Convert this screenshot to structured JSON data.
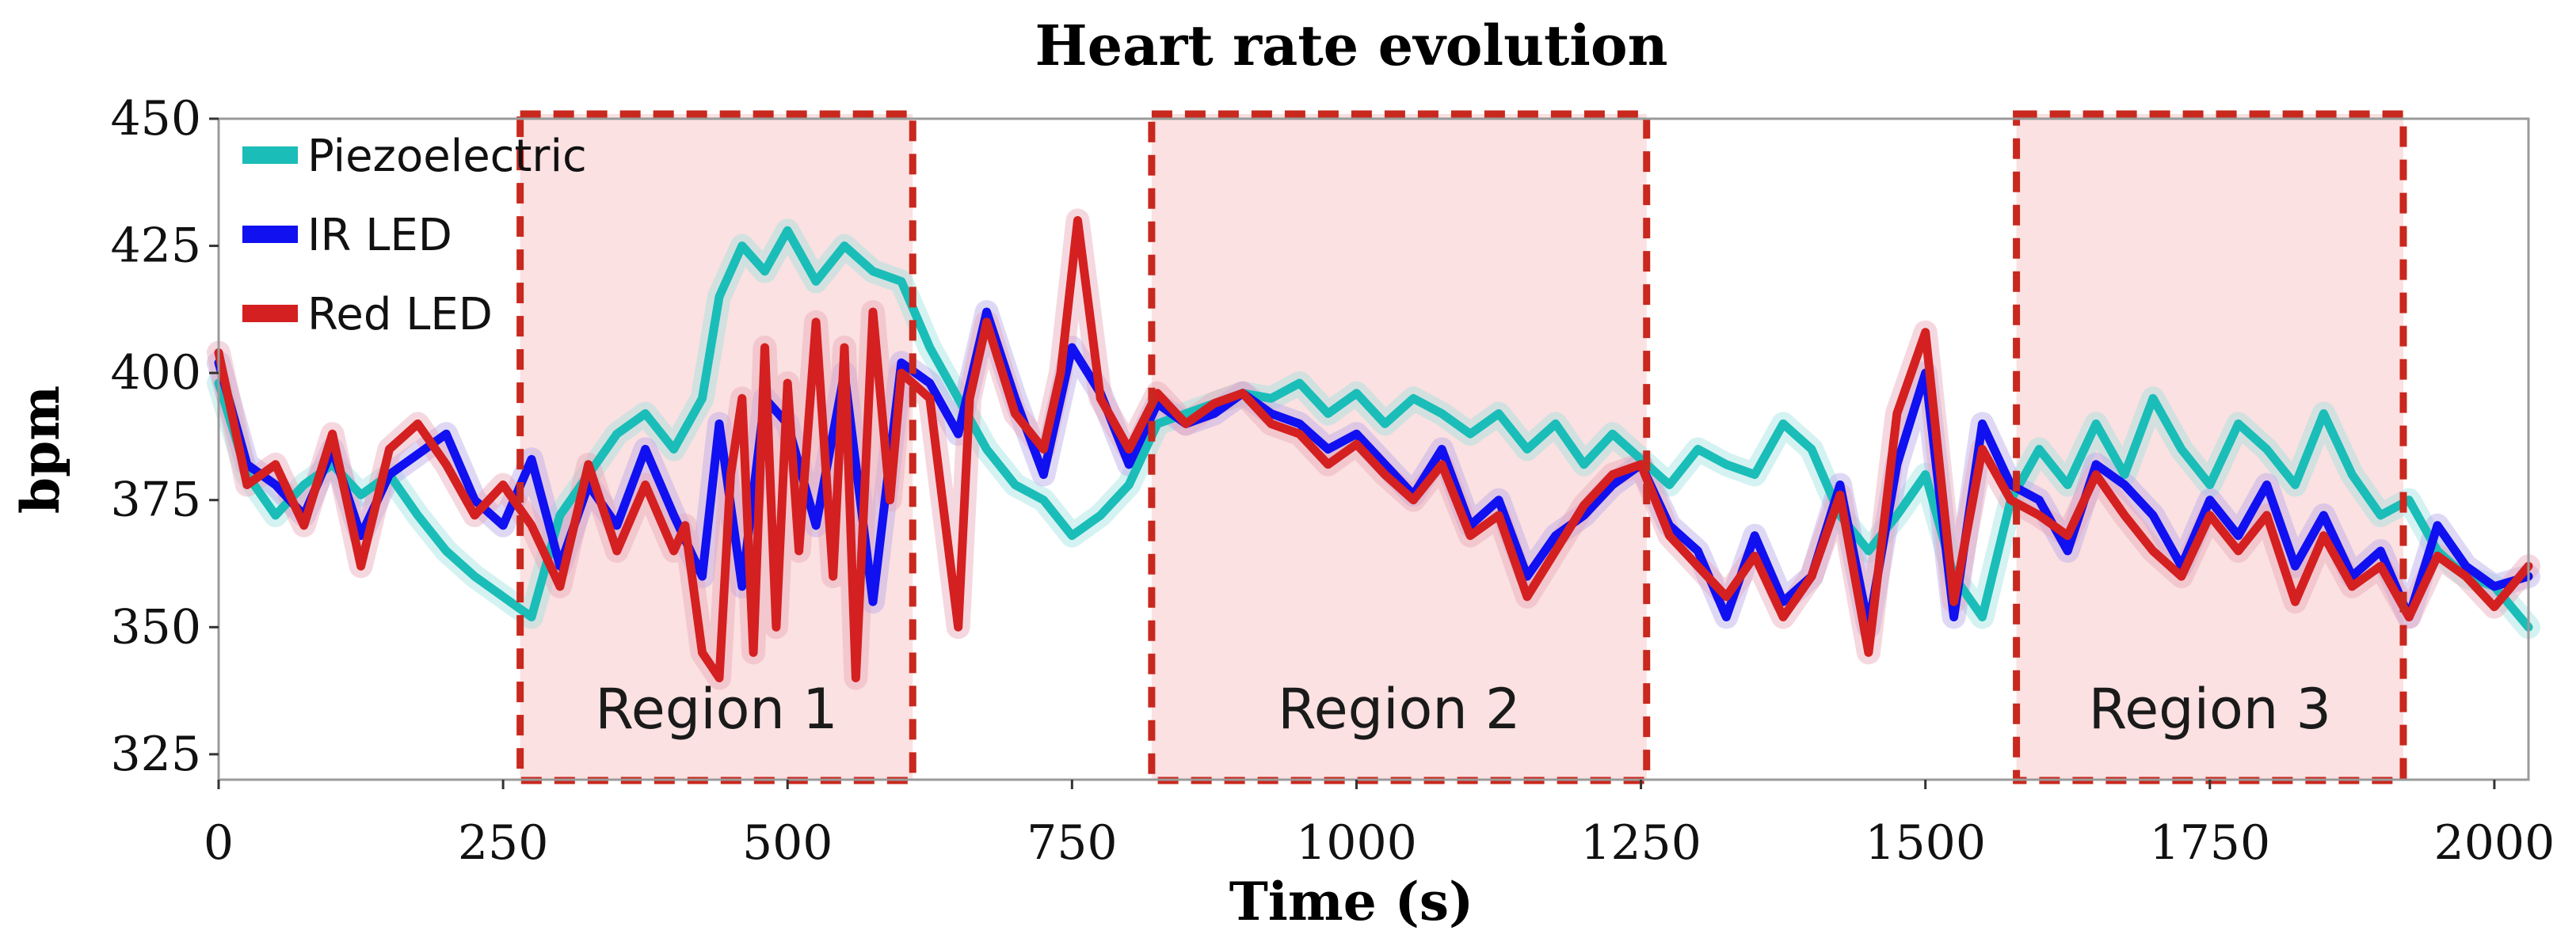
{
  "chart_data": {
    "type": "line",
    "title": "Heart rate evolution",
    "xlabel": "Time (s)",
    "ylabel": "bpm",
    "xlim": [
      0,
      2030
    ],
    "ylim": [
      320,
      450
    ],
    "xticks": [
      0,
      250,
      500,
      750,
      1000,
      1250,
      1500,
      1750,
      2000
    ],
    "yticks": [
      325,
      350,
      375,
      400,
      425,
      450
    ],
    "legend_position": "top-left",
    "series": [
      {
        "name": "Piezoelectric",
        "color": "#1bbdb8",
        "band_color": "#9fe3df",
        "x": [
          0,
          25,
          50,
          75,
          100,
          125,
          150,
          175,
          200,
          225,
          250,
          275,
          300,
          325,
          350,
          375,
          400,
          425,
          440,
          460,
          480,
          500,
          525,
          550,
          575,
          600,
          625,
          650,
          675,
          700,
          725,
          750,
          775,
          800,
          825,
          850,
          875,
          900,
          925,
          950,
          975,
          1000,
          1025,
          1050,
          1075,
          1100,
          1125,
          1150,
          1175,
          1200,
          1225,
          1250,
          1275,
          1300,
          1325,
          1350,
          1375,
          1400,
          1425,
          1450,
          1475,
          1500,
          1525,
          1550,
          1575,
          1600,
          1625,
          1650,
          1675,
          1700,
          1725,
          1750,
          1775,
          1800,
          1825,
          1850,
          1875,
          1900,
          1925,
          1950,
          1975,
          2000,
          2030
        ],
        "values": [
          398,
          380,
          372,
          378,
          382,
          376,
          380,
          372,
          365,
          360,
          356,
          352,
          372,
          380,
          388,
          392,
          385,
          395,
          415,
          425,
          420,
          428,
          418,
          425,
          420,
          418,
          405,
          395,
          385,
          378,
          375,
          368,
          372,
          378,
          390,
          392,
          394,
          396,
          395,
          398,
          392,
          396,
          390,
          395,
          392,
          388,
          392,
          385,
          390,
          382,
          388,
          383,
          378,
          385,
          382,
          380,
          390,
          385,
          372,
          365,
          372,
          380,
          360,
          352,
          375,
          385,
          378,
          390,
          380,
          395,
          385,
          378,
          390,
          385,
          378,
          392,
          380,
          372,
          375,
          365,
          360,
          358,
          350
        ]
      },
      {
        "name": "IR LED",
        "color": "#1010f0",
        "band_color": "#b8a8e8",
        "x": [
          0,
          25,
          50,
          75,
          100,
          125,
          150,
          175,
          200,
          225,
          250,
          275,
          300,
          325,
          350,
          375,
          400,
          425,
          440,
          460,
          480,
          500,
          525,
          550,
          575,
          600,
          625,
          650,
          675,
          700,
          725,
          750,
          775,
          800,
          825,
          850,
          875,
          900,
          925,
          950,
          975,
          1000,
          1025,
          1050,
          1075,
          1100,
          1125,
          1150,
          1175,
          1200,
          1225,
          1250,
          1275,
          1300,
          1325,
          1350,
          1375,
          1400,
          1425,
          1450,
          1475,
          1500,
          1525,
          1550,
          1575,
          1600,
          1625,
          1650,
          1675,
          1700,
          1725,
          1750,
          1775,
          1800,
          1825,
          1850,
          1875,
          1900,
          1925,
          1950,
          1975,
          2000,
          2030
        ],
        "values": [
          402,
          382,
          378,
          372,
          385,
          368,
          380,
          384,
          388,
          375,
          370,
          383,
          362,
          378,
          370,
          385,
          372,
          360,
          390,
          358,
          395,
          390,
          370,
          400,
          355,
          402,
          398,
          388,
          412,
          395,
          380,
          405,
          396,
          382,
          394,
          390,
          392,
          396,
          392,
          390,
          385,
          388,
          382,
          376,
          385,
          370,
          375,
          360,
          368,
          372,
          378,
          382,
          370,
          365,
          352,
          368,
          355,
          360,
          378,
          350,
          382,
          400,
          352,
          390,
          378,
          375,
          365,
          382,
          378,
          372,
          362,
          375,
          368,
          378,
          362,
          372,
          360,
          365,
          352,
          370,
          362,
          358,
          360
        ]
      },
      {
        "name": "Red LED",
        "color": "#d42020",
        "band_color": "#e8a8b8",
        "x": [
          0,
          25,
          50,
          75,
          100,
          125,
          150,
          175,
          200,
          225,
          250,
          275,
          300,
          325,
          350,
          375,
          400,
          410,
          425,
          440,
          450,
          460,
          470,
          480,
          490,
          500,
          510,
          525,
          540,
          550,
          560,
          575,
          590,
          600,
          625,
          650,
          660,
          675,
          700,
          725,
          740,
          755,
          775,
          800,
          825,
          850,
          875,
          900,
          925,
          950,
          975,
          1000,
          1025,
          1050,
          1075,
          1100,
          1125,
          1150,
          1175,
          1200,
          1225,
          1250,
          1275,
          1300,
          1325,
          1350,
          1375,
          1400,
          1425,
          1450,
          1475,
          1500,
          1525,
          1550,
          1575,
          1600,
          1625,
          1650,
          1675,
          1700,
          1725,
          1750,
          1775,
          1800,
          1825,
          1850,
          1875,
          1900,
          1925,
          1950,
          1975,
          2000,
          2030
        ],
        "values": [
          404,
          378,
          382,
          370,
          388,
          362,
          385,
          390,
          382,
          372,
          378,
          370,
          358,
          382,
          365,
          378,
          365,
          370,
          345,
          340,
          380,
          395,
          345,
          405,
          350,
          398,
          365,
          410,
          360,
          405,
          340,
          412,
          375,
          400,
          395,
          350,
          395,
          410,
          392,
          385,
          400,
          430,
          395,
          385,
          396,
          390,
          394,
          396,
          390,
          388,
          382,
          386,
          380,
          375,
          382,
          368,
          372,
          356,
          365,
          374,
          380,
          382,
          368,
          362,
          356,
          364,
          352,
          360,
          376,
          345,
          392,
          408,
          355,
          385,
          375,
          372,
          368,
          380,
          372,
          365,
          360,
          372,
          365,
          372,
          355,
          368,
          358,
          362,
          352,
          364,
          360,
          354,
          362
        ]
      }
    ],
    "regions": [
      {
        "label": "Region 1",
        "x_start": 265,
        "x_end": 610
      },
      {
        "label": "Region 2",
        "x_start": 820,
        "x_end": 1255
      },
      {
        "label": "Region 3",
        "x_start": 1580,
        "x_end": 1920
      }
    ],
    "region_color": "#c8281e",
    "region_fill": "#fbe1e1"
  }
}
